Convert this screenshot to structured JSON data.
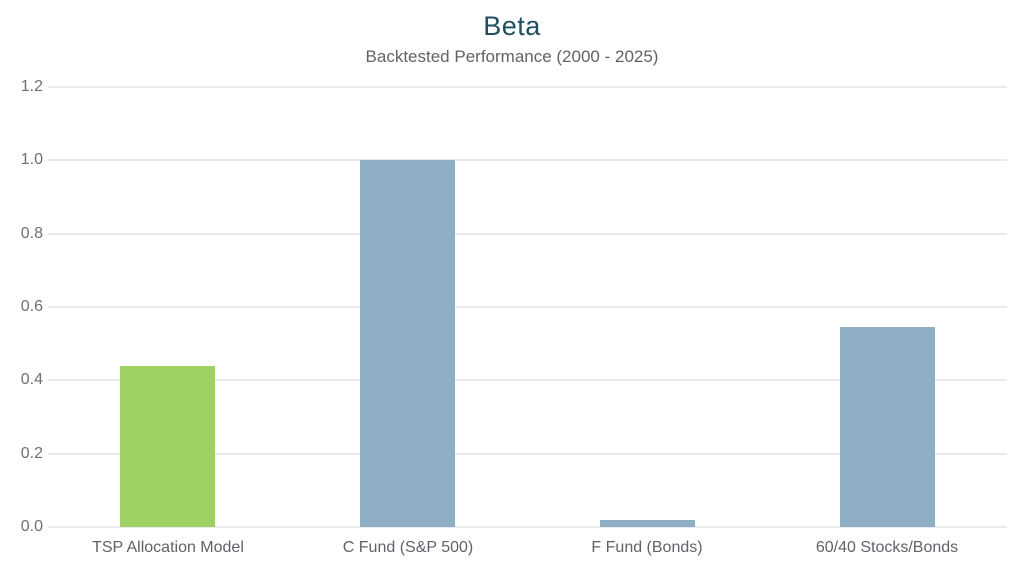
{
  "chart_data": {
    "type": "bar",
    "title": "Beta",
    "subtitle": "Backtested Performance (2000 - 2025)",
    "categories": [
      "TSP Allocation Model",
      "C Fund (S&P 500)",
      "F Fund (Bonds)",
      "60/40 Stocks/Bonds"
    ],
    "values": [
      0.44,
      1.0,
      0.02,
      0.545
    ],
    "bar_colors": [
      "#9dd164",
      "#8fb0c4",
      "#8fb0c4",
      "#8fb0c4"
    ],
    "xlabel": "",
    "ylabel": "",
    "ylim": [
      0,
      1.2
    ],
    "yticks": [
      0.0,
      0.2,
      0.4,
      0.6,
      0.8,
      1.0,
      1.2
    ],
    "ytick_labels": [
      "0.0",
      "0.2",
      "0.4",
      "0.6",
      "0.8",
      "1.0",
      "1.2"
    ],
    "grid": true,
    "legend": "none",
    "colors": {
      "title": "#1f4e5f",
      "subtitle": "#5f6368",
      "y_axis_label": "#6f6f6f",
      "x_axis_label": "#5f6368",
      "gridline": "#e9e9e9",
      "background": "#ffffff"
    }
  }
}
